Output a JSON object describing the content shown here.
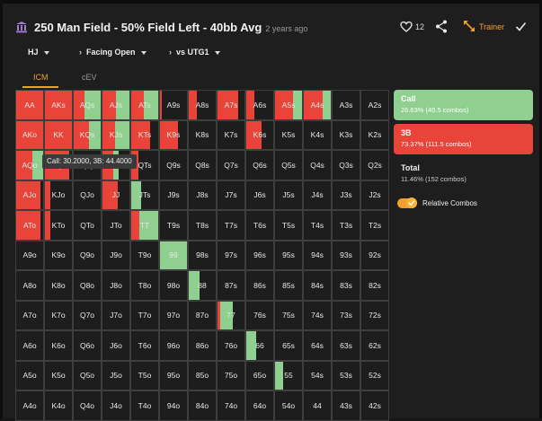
{
  "header": {
    "title": "250 Man Field - 50% Field Left - 40bb Avg",
    "time_ago": "2 years ago",
    "likes": "12",
    "trainer_label": "Trainer"
  },
  "filters": {
    "position": "HJ",
    "action": "Facing Open",
    "opponent": "vs UTG1"
  },
  "tabs": [
    {
      "label": "ICM",
      "active": true
    },
    {
      "label": "cEV",
      "active": false
    }
  ],
  "colors": {
    "call": "#8fcf8f",
    "threebet": "#e8443a",
    "fold": "#1d1d1d",
    "accent": "#f0a030"
  },
  "tooltip": "Call: 30.2000, 3B: 44.4000",
  "grid": {
    "rows": [
      [
        [
          "AA",
          0,
          1
        ],
        [
          "AKs",
          0,
          1
        ],
        [
          "AQs",
          0.6,
          0.4
        ],
        [
          "AJs",
          0.5,
          0.5
        ],
        [
          "ATs",
          0.55,
          0.45
        ],
        [
          "A9s",
          0,
          0.05
        ],
        [
          "A8s",
          0,
          0.3
        ],
        [
          "A7s",
          0,
          0.75
        ],
        [
          "A6s",
          0,
          0.3
        ],
        [
          "A5s",
          0.35,
          0.65
        ],
        [
          "A4s",
          0.3,
          0.7
        ],
        [
          "A3s",
          0,
          0
        ],
        [
          "A2s",
          0,
          0
        ]
      ],
      [
        [
          "AKo",
          0,
          1
        ],
        [
          "KK",
          0,
          1
        ],
        [
          "KQs",
          0.45,
          0.55
        ],
        [
          "KJs",
          0.55,
          0.45
        ],
        [
          "KTs",
          0,
          0.7
        ],
        [
          "K9s",
          0,
          0.65
        ],
        [
          "K8s",
          0,
          0
        ],
        [
          "K7s",
          0,
          0
        ],
        [
          "K6s",
          0,
          0.55
        ],
        [
          "K5s",
          0,
          0
        ],
        [
          "K4s",
          0,
          0
        ],
        [
          "K3s",
          0,
          0
        ],
        [
          "K2s",
          0,
          0
        ]
      ],
      [
        [
          "AQo",
          0.4,
          0.6
        ],
        [
          "KQo",
          0,
          0.9
        ],
        [
          "QQ",
          0,
          0
        ],
        [
          "QJs",
          0.2,
          0.4
        ],
        [
          "QTs",
          0,
          0.25
        ],
        [
          "Q9s",
          0,
          0
        ],
        [
          "Q8s",
          0,
          0
        ],
        [
          "Q7s",
          0,
          0
        ],
        [
          "Q6s",
          0,
          0
        ],
        [
          "Q5s",
          0,
          0
        ],
        [
          "Q4s",
          0,
          0
        ],
        [
          "Q3s",
          0,
          0
        ],
        [
          "Q2s",
          0,
          0
        ]
      ],
      [
        [
          "AJo",
          0,
          0.9
        ],
        [
          "KJo",
          0,
          0.2
        ],
        [
          "QJo",
          0,
          0
        ],
        [
          "JJ",
          0,
          0.55
        ],
        [
          "JTs",
          0.35,
          0
        ],
        [
          "J9s",
          0,
          0
        ],
        [
          "J8s",
          0,
          0
        ],
        [
          "J7s",
          0,
          0
        ],
        [
          "J6s",
          0,
          0
        ],
        [
          "J5s",
          0,
          0
        ],
        [
          "J4s",
          0,
          0
        ],
        [
          "J3s",
          0,
          0
        ],
        [
          "J2s",
          0,
          0
        ]
      ],
      [
        [
          "ATo",
          0,
          0.9
        ],
        [
          "KTo",
          0,
          0.2
        ],
        [
          "QTo",
          0,
          0
        ],
        [
          "JTo",
          0,
          0
        ],
        [
          "TT",
          0.7,
          0.3
        ],
        [
          "T9s",
          0,
          0
        ],
        [
          "T8s",
          0,
          0
        ],
        [
          "T7s",
          0,
          0
        ],
        [
          "T6s",
          0,
          0
        ],
        [
          "T5s",
          0,
          0
        ],
        [
          "T4s",
          0,
          0
        ],
        [
          "T3s",
          0,
          0
        ],
        [
          "T2s",
          0,
          0
        ]
      ],
      [
        [
          "A9o",
          0,
          0
        ],
        [
          "K9o",
          0,
          0
        ],
        [
          "Q9o",
          0,
          0
        ],
        [
          "J9o",
          0,
          0
        ],
        [
          "T9o",
          0,
          0
        ],
        [
          "99",
          1,
          0
        ],
        [
          "98s",
          0,
          0
        ],
        [
          "97s",
          0,
          0
        ],
        [
          "96s",
          0,
          0
        ],
        [
          "95s",
          0,
          0
        ],
        [
          "94s",
          0,
          0
        ],
        [
          "93s",
          0,
          0
        ],
        [
          "92s",
          0,
          0
        ]
      ],
      [
        [
          "A8o",
          0,
          0
        ],
        [
          "K8o",
          0,
          0
        ],
        [
          "Q8o",
          0,
          0
        ],
        [
          "J8o",
          0,
          0
        ],
        [
          "T8o",
          0,
          0
        ],
        [
          "98o",
          0,
          0
        ],
        [
          "88",
          0.4,
          0
        ],
        [
          "87s",
          0,
          0
        ],
        [
          "86s",
          0,
          0
        ],
        [
          "85s",
          0,
          0
        ],
        [
          "84s",
          0,
          0
        ],
        [
          "83s",
          0,
          0
        ],
        [
          "82s",
          0,
          0
        ]
      ],
      [
        [
          "A7o",
          0,
          0
        ],
        [
          "K7o",
          0,
          0
        ],
        [
          "Q7o",
          0,
          0
        ],
        [
          "J7o",
          0,
          0
        ],
        [
          "T7o",
          0,
          0
        ],
        [
          "97o",
          0,
          0
        ],
        [
          "87o",
          0,
          0
        ],
        [
          "77",
          0.45,
          0.1
        ],
        [
          "76s",
          0,
          0
        ],
        [
          "75s",
          0,
          0
        ],
        [
          "74s",
          0,
          0
        ],
        [
          "73s",
          0,
          0
        ],
        [
          "72s",
          0,
          0
        ]
      ],
      [
        [
          "A6o",
          0,
          0
        ],
        [
          "K6o",
          0,
          0
        ],
        [
          "Q6o",
          0,
          0
        ],
        [
          "J6o",
          0,
          0
        ],
        [
          "T6o",
          0,
          0
        ],
        [
          "96o",
          0,
          0
        ],
        [
          "86o",
          0,
          0
        ],
        [
          "76o",
          0,
          0
        ],
        [
          "66",
          0.35,
          0
        ],
        [
          "65s",
          0,
          0
        ],
        [
          "64s",
          0,
          0
        ],
        [
          "63s",
          0,
          0
        ],
        [
          "62s",
          0,
          0
        ]
      ],
      [
        [
          "A5o",
          0,
          0
        ],
        [
          "K5o",
          0,
          0
        ],
        [
          "Q5o",
          0,
          0
        ],
        [
          "J5o",
          0,
          0
        ],
        [
          "T5o",
          0,
          0
        ],
        [
          "95o",
          0,
          0
        ],
        [
          "85o",
          0,
          0
        ],
        [
          "75o",
          0,
          0
        ],
        [
          "65o",
          0,
          0
        ],
        [
          "55",
          0.3,
          0
        ],
        [
          "54s",
          0,
          0
        ],
        [
          "53s",
          0,
          0
        ],
        [
          "52s",
          0,
          0
        ]
      ],
      [
        [
          "A4o",
          0,
          0
        ],
        [
          "K4o",
          0,
          0
        ],
        [
          "Q4o",
          0,
          0
        ],
        [
          "J4o",
          0,
          0
        ],
        [
          "T4o",
          0,
          0
        ],
        [
          "94o",
          0,
          0
        ],
        [
          "84o",
          0,
          0
        ],
        [
          "74o",
          0,
          0
        ],
        [
          "64o",
          0,
          0
        ],
        [
          "54o",
          0,
          0
        ],
        [
          "44",
          0,
          0
        ],
        [
          "43s",
          0,
          0
        ],
        [
          "42s",
          0,
          0
        ]
      ]
    ]
  },
  "legend": {
    "call": {
      "name": "Call",
      "detail": "26.63% (40.5 combos)"
    },
    "threebet": {
      "name": "3B",
      "detail": "73.37% (111.5 combos)"
    },
    "total": {
      "name": "Total",
      "detail": "11.46% (152 combos)"
    }
  },
  "relative_combos": {
    "label": "Relative Combos",
    "on": true
  }
}
